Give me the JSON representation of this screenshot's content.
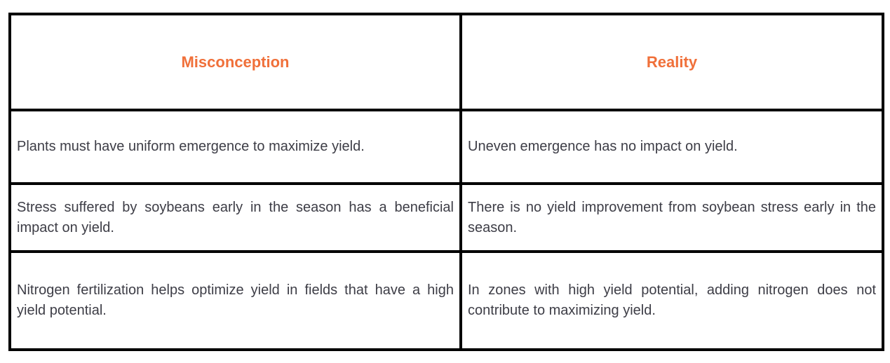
{
  "table": {
    "headers": [
      {
        "label": "Misconception"
      },
      {
        "label": "Reality"
      }
    ],
    "rows": [
      {
        "misconception": "Plants must have uniform emergence to maximize yield.",
        "reality": "Uneven emergence has no impact on yield."
      },
      {
        "misconception": "Stress suffered by soybeans early in the season has a beneficial impact on yield.",
        "reality": "There is no yield improvement from soybean stress early in the season."
      },
      {
        "misconception": "Nitrogen fertilization helps optimize yield in fields that have a high yield potential.",
        "reality": "In zones with high yield potential, adding nitrogen does not contribute to maximizing yield."
      }
    ],
    "colors": {
      "header_text": "#F0703A",
      "body_text": "#3D3D46",
      "border": "#000000",
      "background": "#FFFFFF"
    }
  }
}
